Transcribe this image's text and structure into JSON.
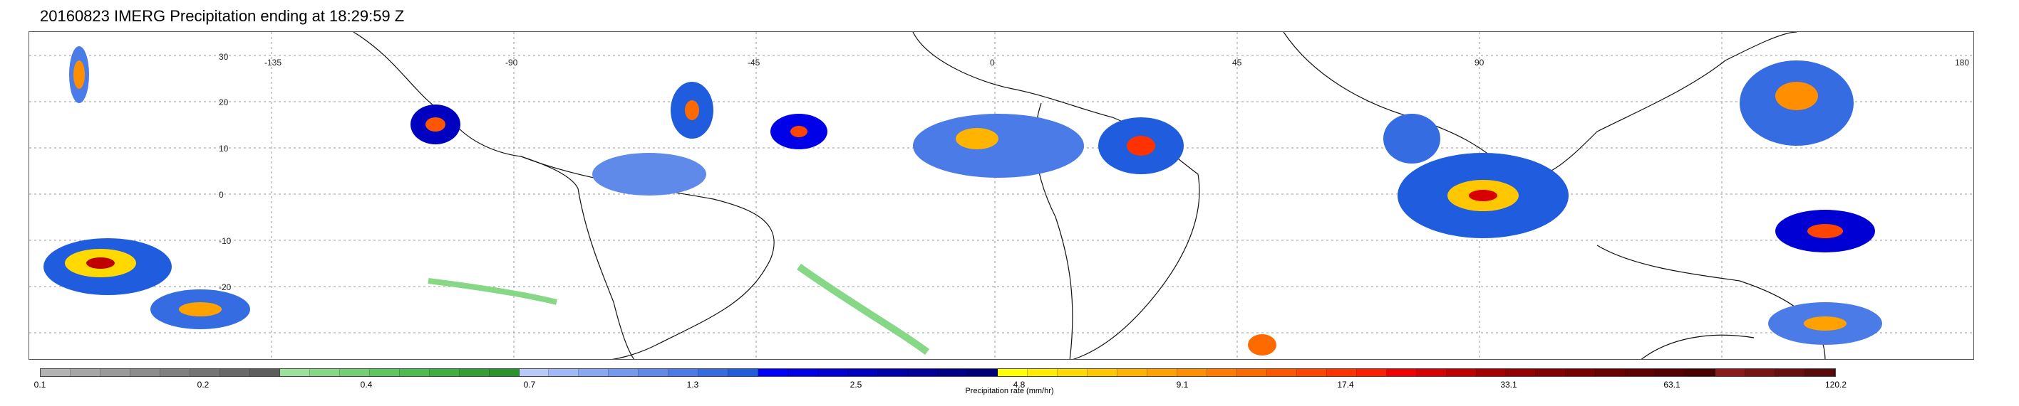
{
  "title": "20160823 IMERG Precipitation ending at 18:29:59 Z",
  "map": {
    "lon_labels": [
      "-135",
      "-90",
      "-45",
      "0",
      "45",
      "90",
      "180"
    ],
    "lat_labels": [
      "30",
      "20",
      "10",
      "0",
      "-10",
      "-20"
    ],
    "grid": true
  },
  "colorbar": {
    "label": "Precipitation rate (mm/hr)",
    "ticks": [
      "0.1",
      "0.2",
      "0.4",
      "0.7",
      "1.3",
      "2.5",
      "4.8",
      "9.1",
      "17.4",
      "33.1",
      "63.1",
      "120.2"
    ],
    "colors": [
      "#b3b3b3",
      "#a6a6a6",
      "#9a9a9a",
      "#8d8d8d",
      "#808080",
      "#747474",
      "#686868",
      "#5d5d5d",
      "#9be09b",
      "#86d886",
      "#72cf72",
      "#5ec65e",
      "#4dbb4d",
      "#3fae3f",
      "#339f33",
      "#2a932a",
      "#b8c8f8",
      "#a0b8f6",
      "#8aa8f2",
      "#7599ee",
      "#5f8aea",
      "#4a7be6",
      "#356ce2",
      "#1f5dde",
      "#0000ff",
      "#0000e8",
      "#0000d4",
      "#0000c0",
      "#0000ad",
      "#00009a",
      "#000088",
      "#000078",
      "#ffff00",
      "#ffec00",
      "#ffd900",
      "#ffc700",
      "#ffb400",
      "#ffa200",
      "#ff8f00",
      "#ff7c00",
      "#ff6a00",
      "#ff5700",
      "#ff4500",
      "#ff3200",
      "#ff1f00",
      "#f00000",
      "#d80000",
      "#c00000",
      "#a80000",
      "#950000",
      "#850000",
      "#780000",
      "#6b0000",
      "#600000",
      "#550000",
      "#4a0000",
      "#8b1a1a",
      "#7a1414",
      "#6a0f0f",
      "#5b0a0a"
    ]
  }
}
